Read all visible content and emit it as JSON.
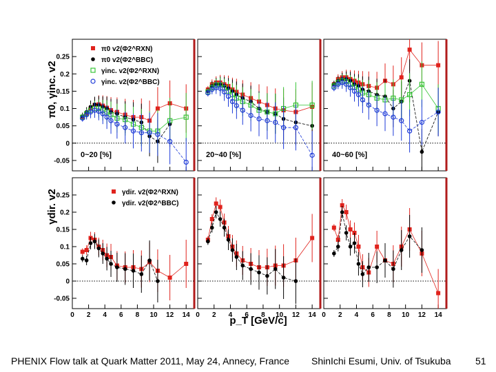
{
  "footer": {
    "talk": "PHENIX Flow talk at Quark Matter 2011, May 24, Annecy, France",
    "author": "ShinIchi Esumi, Univ. of Tsukuba",
    "page": "51"
  },
  "colors": {
    "red": "#e0231d",
    "black": "#000000",
    "green": "#35c435",
    "blue": "#1d3ad8",
    "frame": "#000000",
    "frame_right": "#b11c1c"
  },
  "chart_data": {
    "type": "scatter",
    "xlabel": "p_T [GeV/c]",
    "xlim": [
      0,
      15
    ],
    "ylim": [
      -0.08,
      0.3
    ],
    "xticks": [
      "0",
      "2",
      "4",
      "6",
      "8",
      "10",
      "12",
      "14"
    ],
    "yticks": [
      "-0.05",
      "0",
      "0.05",
      "0.1",
      "0.15",
      "0.2",
      "0.25"
    ],
    "ylabel_top": "π0, γinc. v2",
    "ylabel_bottom": "γdir. v2",
    "legend_top": [
      {
        "label": "π0 v2(Φ2^RXN)",
        "marker": "filled-square",
        "color": "red"
      },
      {
        "label": "π0 v2(Φ2^BBC)",
        "marker": "filled-circle",
        "color": "black"
      },
      {
        "label": "γinc. v2(Φ2^RXN)",
        "marker": "open-square",
        "color": "green"
      },
      {
        "label": "γinc. v2(Φ2^BBC)",
        "marker": "open-circle",
        "color": "blue"
      }
    ],
    "legend_bottom": [
      {
        "label": "γdir. v2(Φ2^RXN)",
        "marker": "filled-square",
        "color": "red"
      },
      {
        "label": "γdir. v2(Φ2^BBC)",
        "marker": "filled-circle",
        "color": "black"
      }
    ],
    "top_row": [
      {
        "centrality": "0~20 [%]",
        "series": [
          {
            "name": "pi0 RXN",
            "x": [
              1.25,
              1.75,
              2.25,
              2.75,
              3.25,
              3.75,
              4.25,
              4.75,
              5.5,
              6.5,
              7.5,
              8.5,
              9.5,
              10.5,
              12,
              14
            ],
            "y": [
              0.075,
              0.085,
              0.1,
              0.11,
              0.112,
              0.108,
              0.102,
              0.095,
              0.09,
              0.082,
              0.075,
              0.075,
              0.065,
              0.1,
              0.115,
              0.1
            ]
          },
          {
            "name": "pi0 BBC",
            "x": [
              1.25,
              1.75,
              2.25,
              2.75,
              3.25,
              3.75,
              4.25,
              4.75,
              5.5,
              6.5,
              7.5,
              8.5,
              9.5,
              10.5,
              12
            ],
            "y": [
              0.078,
              0.09,
              0.105,
              0.112,
              0.11,
              0.105,
              0.1,
              0.09,
              0.085,
              0.075,
              0.068,
              0.06,
              0.02,
              0.005,
              0.055
            ]
          },
          {
            "name": "gamma-inc RXN",
            "x": [
              1.25,
              1.75,
              2.25,
              2.75,
              3.25,
              3.75,
              4.25,
              4.75,
              5.5,
              6.5,
              7.5,
              8.5,
              9.5,
              10.5,
              12,
              14
            ],
            "y": [
              0.075,
              0.085,
              0.095,
              0.1,
              0.1,
              0.095,
              0.09,
              0.082,
              0.072,
              0.068,
              0.055,
              0.045,
              0.035,
              0.035,
              0.065,
              0.075
            ]
          },
          {
            "name": "gamma-inc BBC",
            "x": [
              1.25,
              1.75,
              2.25,
              2.75,
              3.25,
              3.75,
              4.25,
              4.75,
              5.5,
              6.5,
              7.5,
              8.5,
              9.5,
              10.5,
              12,
              14
            ],
            "y": [
              0.072,
              0.082,
              0.09,
              0.095,
              0.092,
              0.085,
              0.075,
              0.065,
              0.055,
              0.045,
              0.035,
              0.03,
              0.03,
              0.025,
              0.005,
              -0.055
            ]
          }
        ]
      },
      {
        "centrality": "20~40 [%]",
        "series": [
          {
            "name": "pi0 RXN",
            "x": [
              1.25,
              1.75,
              2.25,
              2.75,
              3.25,
              3.75,
              4.25,
              4.75,
              5.5,
              6.5,
              7.5,
              8.5,
              9.5,
              10.5,
              12,
              14
            ],
            "y": [
              0.155,
              0.17,
              0.175,
              0.175,
              0.17,
              0.165,
              0.155,
              0.148,
              0.14,
              0.13,
              0.12,
              0.11,
              0.1,
              0.095,
              0.09,
              0.105
            ]
          },
          {
            "name": "pi0 BBC",
            "x": [
              1.25,
              1.75,
              2.25,
              2.75,
              3.25,
              3.75,
              4.25,
              4.75,
              5.5,
              6.5,
              7.5,
              8.5,
              9.5,
              10.5,
              12,
              14
            ],
            "y": [
              0.15,
              0.165,
              0.17,
              0.17,
              0.165,
              0.158,
              0.15,
              0.14,
              0.13,
              0.12,
              0.1,
              0.09,
              0.085,
              0.07,
              0.06,
              0.05
            ]
          },
          {
            "name": "gamma-inc RXN",
            "x": [
              1.25,
              1.75,
              2.25,
              2.75,
              3.25,
              3.75,
              4.25,
              4.75,
              5.5,
              6.5,
              7.5,
              8.5,
              9.5,
              10.5,
              12,
              14
            ],
            "y": [
              0.148,
              0.16,
              0.168,
              0.168,
              0.16,
              0.15,
              0.14,
              0.13,
              0.12,
              0.11,
              0.095,
              0.09,
              0.085,
              0.1,
              0.11,
              0.11
            ]
          },
          {
            "name": "gamma-inc BBC",
            "x": [
              1.25,
              1.75,
              2.25,
              2.75,
              3.25,
              3.75,
              4.25,
              4.75,
              5.5,
              6.5,
              7.5,
              8.5,
              9.5,
              10.5,
              12,
              14
            ],
            "y": [
              0.145,
              0.155,
              0.16,
              0.158,
              0.148,
              0.135,
              0.12,
              0.108,
              0.095,
              0.08,
              0.07,
              0.065,
              0.06,
              0.045,
              0.045,
              -0.035
            ]
          }
        ]
      },
      {
        "centrality": "40~60 [%]",
        "series": [
          {
            "name": "pi0 RXN",
            "x": [
              1.25,
              1.75,
              2.25,
              2.75,
              3.25,
              3.75,
              4.25,
              4.75,
              5.5,
              6.5,
              7.5,
              8.5,
              9.5,
              10.5,
              12,
              14
            ],
            "y": [
              0.17,
              0.185,
              0.19,
              0.19,
              0.185,
              0.18,
              0.175,
              0.17,
              0.165,
              0.16,
              0.18,
              0.17,
              0.19,
              0.27,
              0.225,
              0.225
            ]
          },
          {
            "name": "pi0 BBC",
            "x": [
              1.25,
              1.75,
              2.25,
              2.75,
              3.25,
              3.75,
              4.25,
              4.75,
              5.5,
              6.5,
              7.5,
              8.5,
              9.5,
              10.5,
              12,
              14
            ],
            "y": [
              0.17,
              0.18,
              0.185,
              0.185,
              0.18,
              0.17,
              0.165,
              0.155,
              0.15,
              0.14,
              0.135,
              0.1,
              0.12,
              0.18,
              -0.025,
              0.09
            ]
          },
          {
            "name": "gamma-inc RXN",
            "x": [
              1.25,
              1.75,
              2.25,
              2.75,
              3.25,
              3.75,
              4.25,
              4.75,
              5.5,
              6.5,
              7.5,
              8.5,
              9.5,
              10.5,
              12,
              14
            ],
            "y": [
              0.165,
              0.175,
              0.18,
              0.178,
              0.17,
              0.162,
              0.155,
              0.145,
              0.14,
              0.13,
              0.125,
              0.13,
              0.125,
              0.14,
              0.17,
              0.1
            ]
          },
          {
            "name": "gamma-inc BBC",
            "x": [
              1.25,
              1.75,
              2.25,
              2.75,
              3.25,
              3.75,
              4.25,
              4.75,
              5.5,
              6.5,
              7.5,
              8.5,
              9.5,
              10.5,
              12,
              14
            ],
            "y": [
              0.16,
              0.17,
              0.175,
              0.17,
              0.16,
              0.15,
              0.14,
              0.125,
              0.11,
              0.095,
              0.085,
              0.075,
              0.065,
              0.035,
              0.06,
              0.09
            ]
          }
        ]
      }
    ],
    "bottom_row": [
      {
        "centrality": "0~20 [%]",
        "series": [
          {
            "name": "gamma-dir RXN",
            "x": [
              1.25,
              1.75,
              2.25,
              2.75,
              3.25,
              3.75,
              4.25,
              4.75,
              5.5,
              6.5,
              7.5,
              8.5,
              9.5,
              10.5,
              12,
              14
            ],
            "y": [
              0.085,
              0.09,
              0.125,
              0.12,
              0.1,
              0.09,
              0.075,
              0.07,
              0.045,
              0.04,
              0.04,
              0.035,
              0.055,
              0.03,
              0.01,
              0.05
            ]
          },
          {
            "name": "gamma-dir BBC",
            "x": [
              1.25,
              1.75,
              2.25,
              2.75,
              3.25,
              3.75,
              4.25,
              4.75,
              5.5,
              6.5,
              7.5,
              8.5,
              9.5,
              10.5
            ],
            "y": [
              0.065,
              0.06,
              0.11,
              0.115,
              0.095,
              0.08,
              0.065,
              0.05,
              0.04,
              0.035,
              0.03,
              0.02,
              0.06,
              0.0
            ]
          }
        ]
      },
      {
        "centrality": "20~40 [%]",
        "series": [
          {
            "name": "gamma-dir RXN",
            "x": [
              1.25,
              1.75,
              2.25,
              2.75,
              3.25,
              3.75,
              4.25,
              4.75,
              5.5,
              6.5,
              7.5,
              8.5,
              9.5,
              10.5,
              12,
              14
            ],
            "y": [
              0.12,
              0.18,
              0.225,
              0.215,
              0.17,
              0.13,
              0.1,
              0.08,
              0.06,
              0.05,
              0.04,
              0.04,
              0.045,
              0.045,
              0.06,
              0.125
            ]
          },
          {
            "name": "gamma-dir BBC",
            "x": [
              1.25,
              1.75,
              2.25,
              2.75,
              3.25,
              3.75,
              4.25,
              4.75,
              5.5,
              6.5,
              7.5,
              8.5,
              9.5,
              10.5,
              12
            ],
            "y": [
              0.115,
              0.155,
              0.2,
              0.18,
              0.155,
              0.12,
              0.09,
              0.07,
              0.045,
              0.035,
              0.025,
              0.015,
              0.035,
              0.01,
              0.0
            ]
          }
        ]
      },
      {
        "centrality": "40~60 [%]",
        "series": [
          {
            "name": "gamma-dir RXN",
            "x": [
              1.25,
              1.75,
              2.25,
              2.75,
              3.25,
              3.75,
              4.25,
              4.75,
              5.5,
              6.5,
              7.5,
              8.5,
              9.5,
              10.5,
              12,
              14
            ],
            "y": [
              0.155,
              0.12,
              0.22,
              0.2,
              0.15,
              0.14,
              0.1,
              0.04,
              0.025,
              0.1,
              0.06,
              0.05,
              0.1,
              0.15,
              0.08,
              -0.035
            ]
          },
          {
            "name": "gamma-dir BBC",
            "x": [
              1.25,
              1.75,
              2.25,
              2.75,
              3.25,
              3.75,
              4.25,
              4.75,
              5.5,
              6.5,
              7.5,
              8.5,
              9.5,
              10.5,
              12
            ],
            "y": [
              0.08,
              0.1,
              0.2,
              0.14,
              0.1,
              0.11,
              0.05,
              0.02,
              0.04,
              0.04,
              0.06,
              0.035,
              0.09,
              0.13,
              0.09
            ]
          }
        ]
      }
    ]
  }
}
